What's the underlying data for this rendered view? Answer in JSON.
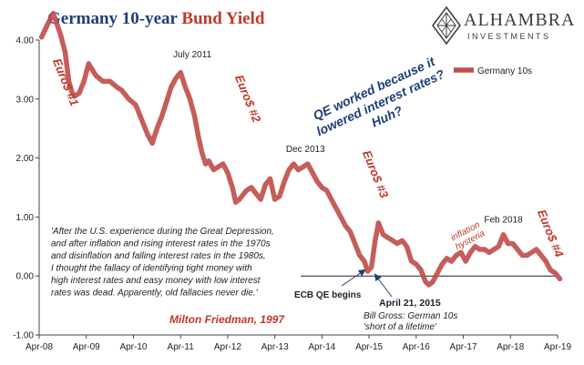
{
  "header": {
    "title_main": "Germany 10-year ",
    "title_highlight": "Bund Yield",
    "logo_name": "ALHAMBRA",
    "logo_sub": "INVESTMENTS"
  },
  "colors": {
    "series": "#c0504d",
    "title": "#1f3f7a",
    "highlight": "#c0392b",
    "question": "#1f3f7a",
    "red_text": "#c0392b"
  },
  "chart_data": {
    "type": "line",
    "ylim": [
      -1.0,
      4.0
    ],
    "y_ticks": [
      "-1.00",
      "0.00",
      "1.00",
      "2.00",
      "3.00",
      "4.00"
    ],
    "y_tick_values": [
      -1,
      0,
      1,
      2,
      3,
      4
    ],
    "x_ticks": [
      "Apr-08",
      "Apr-09",
      "Apr-10",
      "Apr-11",
      "Apr-12",
      "Apr-13",
      "Apr-14",
      "Apr-15",
      "Apr-16",
      "Apr-17",
      "Apr-18",
      "Apr-19"
    ],
    "legend": {
      "label": "Germany 10s",
      "position": "top-right"
    },
    "grid": false,
    "zero_line": true,
    "series": [
      {
        "name": "Germany 10s",
        "x": [
          2008.3,
          2008.45,
          2008.55,
          2008.7,
          2008.8,
          2008.88,
          2008.95,
          2009.0,
          2009.1,
          2009.2,
          2009.3,
          2009.45,
          2009.6,
          2009.75,
          2009.9,
          2010.0,
          2010.15,
          2010.3,
          2010.45,
          2010.55,
          2010.65,
          2010.75,
          2010.85,
          2010.95,
          2011.05,
          2011.15,
          2011.25,
          2011.35,
          2011.45,
          2011.55,
          2011.62,
          2011.7,
          2011.78,
          2011.85,
          2011.95,
          2012.05,
          2012.15,
          2012.25,
          2012.35,
          2012.42,
          2012.5,
          2012.55,
          2012.65,
          2012.75,
          2012.85,
          2012.95,
          2013.05,
          2013.15,
          2013.25,
          2013.35,
          2013.45,
          2013.55,
          2013.65,
          2013.75,
          2013.85,
          2013.95,
          2014.05,
          2014.15,
          2014.25,
          2014.35,
          2014.45,
          2014.55,
          2014.65,
          2014.75,
          2014.85,
          2014.95,
          2015.05,
          2015.15,
          2015.22,
          2015.3,
          2015.38,
          2015.45,
          2015.55,
          2015.65,
          2015.75,
          2015.85,
          2015.95,
          2016.05,
          2016.15,
          2016.25,
          2016.35,
          2016.45,
          2016.52,
          2016.6,
          2016.7,
          2016.8,
          2016.9,
          2017.0,
          2017.1,
          2017.2,
          2017.3,
          2017.4,
          2017.5,
          2017.6,
          2017.7,
          2017.8,
          2017.9,
          2018.0,
          2018.1,
          2018.2,
          2018.3,
          2018.4,
          2018.5,
          2018.6,
          2018.7,
          2018.8,
          2018.9,
          2019.0,
          2019.1,
          2019.2,
          2019.3
        ],
        "values": [
          4.05,
          4.3,
          4.45,
          4.1,
          3.8,
          3.3,
          3.1,
          3.05,
          3.1,
          3.3,
          3.6,
          3.4,
          3.3,
          3.3,
          3.2,
          3.15,
          3.0,
          2.9,
          2.6,
          2.4,
          2.25,
          2.5,
          2.7,
          2.95,
          3.2,
          3.35,
          3.45,
          3.2,
          3.0,
          2.7,
          2.4,
          2.1,
          1.9,
          1.95,
          1.8,
          1.85,
          1.9,
          1.75,
          1.5,
          1.25,
          1.3,
          1.35,
          1.45,
          1.5,
          1.4,
          1.3,
          1.55,
          1.65,
          1.3,
          1.35,
          1.6,
          1.8,
          1.9,
          1.8,
          1.85,
          1.9,
          1.75,
          1.6,
          1.5,
          1.45,
          1.3,
          1.15,
          1.0,
          0.85,
          0.75,
          0.55,
          0.35,
          0.25,
          0.08,
          0.15,
          0.6,
          0.9,
          0.7,
          0.65,
          0.6,
          0.55,
          0.6,
          0.5,
          0.25,
          0.2,
          0.1,
          -0.1,
          -0.15,
          -0.1,
          0.05,
          0.2,
          0.3,
          0.25,
          0.35,
          0.4,
          0.25,
          0.4,
          0.5,
          0.45,
          0.45,
          0.4,
          0.45,
          0.5,
          0.7,
          0.55,
          0.55,
          0.45,
          0.35,
          0.35,
          0.4,
          0.45,
          0.35,
          0.25,
          0.1,
          0.05,
          -0.05
        ]
      }
    ],
    "point_labels": [
      {
        "text": "July 2011",
        "x": 2011.5,
        "y": 3.55
      },
      {
        "text": "Dec 2013",
        "x": 2013.9,
        "y": 1.95
      },
      {
        "text": "Feb 2018",
        "x": 2018.1,
        "y": 0.75
      }
    ],
    "episode_labels": [
      "Euro$ #1",
      "Euro$ #2",
      "Euro$ #3",
      "Euro$ #4"
    ],
    "question": [
      "QE worked because it",
      "lowered interest rates?",
      "Huh?"
    ],
    "inflation_label": [
      "inflation",
      "hysteria"
    ],
    "quote_lines": [
      "'After the U.S. experience during the Great Depression,",
      "and after inflation and rising interest rates in the 1970s",
      "and disinflation and falling interest rates in the 1980s,",
      "I thought the fallacy of identifying tight money with",
      "high interest rates and  easy money with low interest",
      "rates was dead. Apparently, old fallacies never die.'"
    ],
    "quote_author": "Milton Friedman, 1997",
    "ecb_label": "ECB QE begins",
    "april_label": "April 21, 2015",
    "gross_lines": [
      "Bill Gross: German 10s",
      "'short of a lifetime'"
    ]
  }
}
